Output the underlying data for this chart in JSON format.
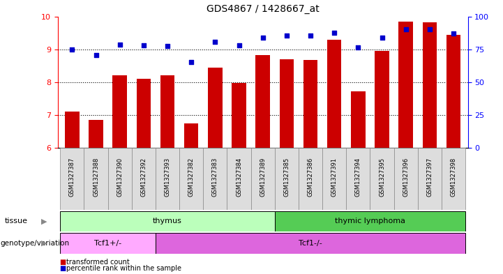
{
  "title": "GDS4867 / 1428667_at",
  "samples": [
    "GSM1327387",
    "GSM1327388",
    "GSM1327390",
    "GSM1327392",
    "GSM1327393",
    "GSM1327382",
    "GSM1327383",
    "GSM1327384",
    "GSM1327389",
    "GSM1327385",
    "GSM1327386",
    "GSM1327391",
    "GSM1327394",
    "GSM1327395",
    "GSM1327396",
    "GSM1327397",
    "GSM1327398"
  ],
  "bar_values": [
    7.1,
    6.85,
    8.2,
    8.1,
    8.2,
    6.75,
    8.45,
    7.98,
    8.82,
    8.7,
    8.67,
    9.3,
    7.72,
    8.95,
    9.85,
    9.82,
    9.43
  ],
  "dot_values": [
    9.0,
    8.82,
    9.15,
    9.12,
    9.1,
    8.62,
    9.22,
    9.12,
    9.35,
    9.42,
    9.42,
    9.5,
    9.05,
    9.35,
    9.6,
    9.62,
    9.48
  ],
  "ylim": [
    6,
    10
  ],
  "y2lim": [
    0,
    100
  ],
  "yticks": [
    6,
    7,
    8,
    9,
    10
  ],
  "y2ticks": [
    0,
    25,
    50,
    75,
    100
  ],
  "bar_color": "#cc0000",
  "dot_color": "#0000cc",
  "tissue_groups": [
    {
      "label": "thymus",
      "start": 0,
      "end": 9,
      "color": "#bbffbb"
    },
    {
      "label": "thymic lymphoma",
      "start": 9,
      "end": 17,
      "color": "#55cc55"
    }
  ],
  "genotype_groups": [
    {
      "label": "Tcf1+/-",
      "start": 0,
      "end": 4,
      "color": "#ffaaff"
    },
    {
      "label": "Tcf1-/-",
      "start": 4,
      "end": 17,
      "color": "#dd66dd"
    }
  ],
  "legend_items": [
    {
      "label": "transformed count",
      "color": "#cc0000"
    },
    {
      "label": "percentile rank within the sample",
      "color": "#0000cc"
    }
  ],
  "grid_color": "black",
  "grid_style": "dotted",
  "label_fontsize": 7.5,
  "tick_fontsize": 7,
  "band_label_left": [
    "tissue",
    "genotype/variation"
  ]
}
